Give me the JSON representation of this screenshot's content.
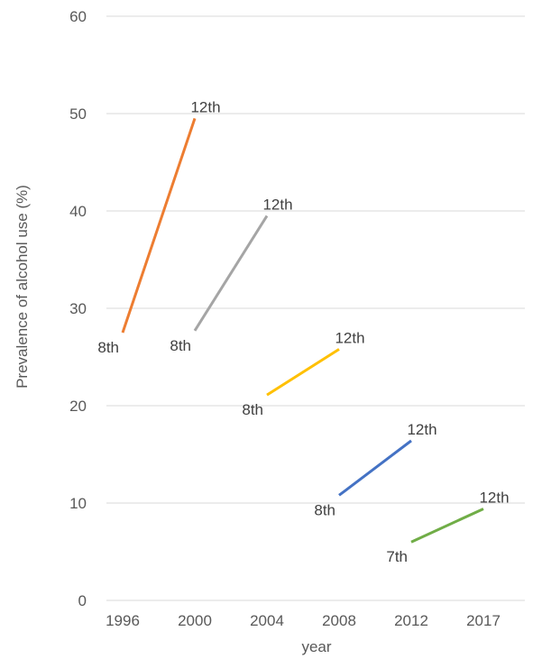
{
  "chart_data": {
    "type": "line",
    "title": "",
    "xlabel": "year",
    "ylabel": "Prevalence of alcohol use (%)",
    "ylim": [
      0,
      60
    ],
    "yticks": [
      0,
      10,
      20,
      30,
      40,
      50,
      60
    ],
    "categories": [
      "1996",
      "2000",
      "2004",
      "2008",
      "2012",
      "2017"
    ],
    "grid": true,
    "series": [
      {
        "color": "#ED7D31",
        "start": {
          "x": "1996",
          "y": 27.5,
          "label": "8th"
        },
        "end": {
          "x": "2000",
          "y": 49.5,
          "label": "12th"
        }
      },
      {
        "color": "#A5A5A5",
        "start": {
          "x": "2000",
          "y": 27.7,
          "label": "8th"
        },
        "end": {
          "x": "2004",
          "y": 39.5,
          "label": "12th"
        }
      },
      {
        "color": "#FFC000",
        "start": {
          "x": "2004",
          "y": 21.1,
          "label": "8th"
        },
        "end": {
          "x": "2008",
          "y": 25.8,
          "label": "12th"
        }
      },
      {
        "color": "#4472C4",
        "start": {
          "x": "2008",
          "y": 10.8,
          "label": "8th"
        },
        "end": {
          "x": "2012",
          "y": 16.4,
          "label": "12th"
        }
      },
      {
        "color": "#70AD47",
        "start": {
          "x": "2012",
          "y": 6.0,
          "label": "7th"
        },
        "end": {
          "x": "2017",
          "y": 9.4,
          "label": "12th"
        }
      }
    ]
  }
}
